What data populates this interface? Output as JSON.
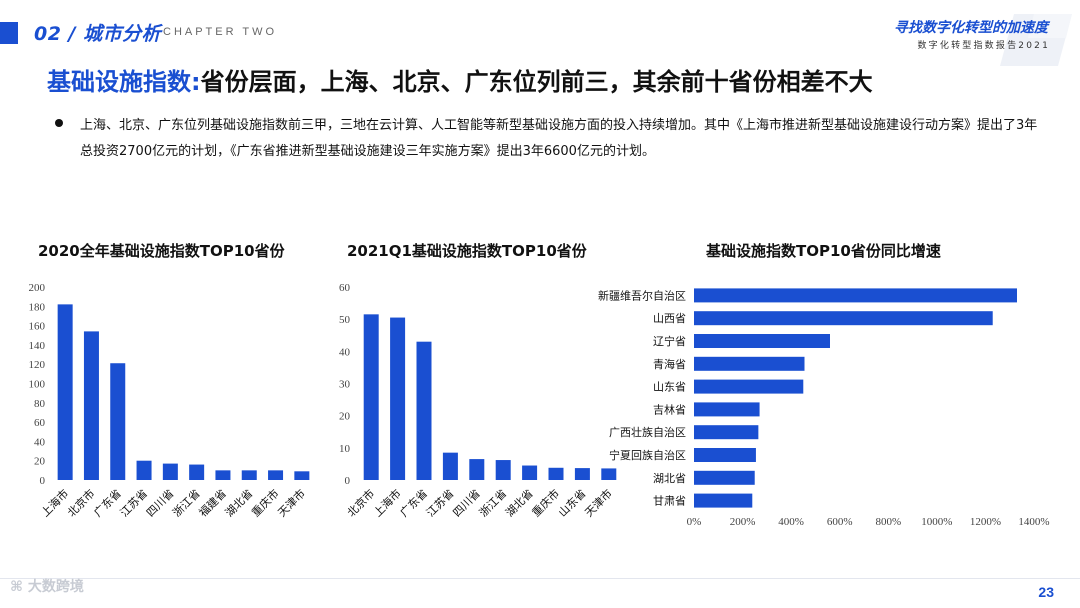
{
  "header": {
    "section_title": "02 / 城市分析",
    "chapter": "CHAPTER TWO",
    "brand_title": "寻找数字化转型的加速度",
    "brand_subtitle": "数字化转型指数报告2021"
  },
  "headline": {
    "prefix": "基础设施指数:",
    "rest": "省份层面，上海、北京、广东位列前三，其余前十省份相差不大"
  },
  "bullet": "上海、北京、广东位列基础设施指数前三甲，三地在云计算、人工智能等新型基础设施方面的投入持续增加。其中《上海市推进新型基础设施建设行动方案》提出了3年总投资2700亿元的计划，《广东省推进新型基础设施建设三年实施方案》提出3年6600亿元的计划。",
  "footer": {
    "logo": "大数跨境",
    "page_number": "23"
  },
  "colors": {
    "accent": "#1a4fd1",
    "bar": "#1a4fd1"
  },
  "chart_data": [
    {
      "type": "bar",
      "title": "2020全年基础设施指数TOP10省份",
      "categories": [
        "上海市",
        "北京市",
        "广东省",
        "江苏省",
        "四川省",
        "浙江省",
        "福建省",
        "湖北省",
        "重庆市",
        "天津市"
      ],
      "values": [
        182,
        154,
        121,
        20,
        17,
        16,
        10,
        10,
        10,
        9
      ],
      "ylim": [
        0,
        200
      ],
      "yticks": [
        0,
        20,
        40,
        60,
        80,
        100,
        120,
        140,
        160,
        180,
        200
      ]
    },
    {
      "type": "bar",
      "title": "2021Q1基础设施指数TOP10省份",
      "categories": [
        "北京市",
        "上海市",
        "广东省",
        "江苏省",
        "四川省",
        "浙江省",
        "湖北省",
        "重庆市",
        "山东省",
        "天津市"
      ],
      "values": [
        51.5,
        50.5,
        43,
        8.5,
        6.5,
        6.2,
        4.5,
        3.8,
        3.7,
        3.6
      ],
      "ylim": [
        0,
        60
      ],
      "yticks": [
        0,
        10,
        20,
        30,
        40,
        50,
        60
      ]
    },
    {
      "type": "bar",
      "orientation": "horizontal",
      "title": "基础设施指数TOP10省份同比增速",
      "categories": [
        "新疆维吾尔自治区",
        "山西省",
        "辽宁省",
        "青海省",
        "山东省",
        "吉林省",
        "广西壮族自治区",
        "宁夏回族自治区",
        "湖北省",
        "甘肃省"
      ],
      "values": [
        1330,
        1230,
        560,
        455,
        450,
        270,
        265,
        255,
        250,
        240
      ],
      "xlim": [
        0,
        1400
      ],
      "xticks": [
        "0%",
        "200%",
        "400%",
        "600%",
        "800%",
        "1000%",
        "1200%",
        "1400%"
      ]
    }
  ]
}
